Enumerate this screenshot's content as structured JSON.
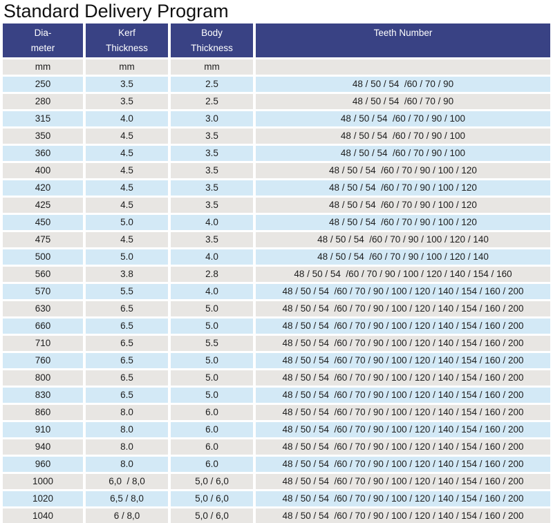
{
  "title": "Standard Delivery Program",
  "colors": {
    "header_bg": "#394284",
    "header_text": "#FFFFFF",
    "row_blue": "#D3E9F6",
    "row_gray": "#E8E6E3",
    "text": "#1C1C1C",
    "title_text": "#111111",
    "separator": "#FFFFFF"
  },
  "table": {
    "columns": [
      {
        "key": "diameter",
        "line1": "Dia-",
        "line2": "meter"
      },
      {
        "key": "kerf",
        "line1": "Kerf",
        "line2": "Thickness"
      },
      {
        "key": "body",
        "line1": "Body",
        "line2": "Thickness"
      },
      {
        "key": "teeth",
        "line1": "Teeth Number",
        "line2": ""
      }
    ],
    "units_row": [
      "mm",
      "mm",
      "mm",
      ""
    ],
    "rows": [
      [
        "250",
        "3.5",
        "2.5",
        "48 / 50 / 54  /60 / 70 / 90"
      ],
      [
        "280",
        "3.5",
        "2.5",
        "48 / 50 / 54  /60 / 70 / 90"
      ],
      [
        "315",
        "4.0",
        "3.0",
        "48 / 50 / 54  /60 / 70 / 90 / 100"
      ],
      [
        "350",
        "4.5",
        "3.5",
        "48 / 50 / 54  /60 / 70 / 90 / 100"
      ],
      [
        "360",
        "4.5",
        "3.5",
        "48 / 50 / 54  /60 / 70 / 90 / 100"
      ],
      [
        "400",
        "4.5",
        "3.5",
        "48 / 50 / 54  /60 / 70 / 90 / 100 / 120"
      ],
      [
        "420",
        "4.5",
        "3.5",
        "48 / 50 / 54  /60 / 70 / 90 / 100 / 120"
      ],
      [
        "425",
        "4.5",
        "3.5",
        "48 / 50 / 54  /60 / 70 / 90 / 100 / 120"
      ],
      [
        "450",
        "5.0",
        "4.0",
        "48 / 50 / 54  /60 / 70 / 90 / 100 / 120"
      ],
      [
        "475",
        "4.5",
        "3.5",
        "48 / 50 / 54  /60 / 70 / 90 / 100 / 120 / 140"
      ],
      [
        "500",
        "5.0",
        "4.0",
        "48 / 50 / 54  /60 / 70 / 90 / 100 / 120 / 140"
      ],
      [
        "560",
        "3.8",
        "2.8",
        "48 / 50 / 54  /60 / 70 / 90 / 100 / 120 / 140 / 154 / 160"
      ],
      [
        "570",
        "5.5",
        "4.0",
        "48 / 50 / 54  /60 / 70 / 90 / 100 / 120 / 140 / 154 / 160 / 200"
      ],
      [
        "630",
        "6.5",
        "5.0",
        "48 / 50 / 54  /60 / 70 / 90 / 100 / 120 / 140 / 154 / 160 / 200"
      ],
      [
        "660",
        "6.5",
        "5.0",
        "48 / 50 / 54  /60 / 70 / 90 / 100 / 120 / 140 / 154 / 160 / 200"
      ],
      [
        "710",
        "6.5",
        "5.5",
        "48 / 50 / 54  /60 / 70 / 90 / 100 / 120 / 140 / 154 / 160 / 200"
      ],
      [
        "760",
        "6.5",
        "5.0",
        "48 / 50 / 54  /60 / 70 / 90 / 100 / 120 / 140 / 154 / 160 / 200"
      ],
      [
        "800",
        "6.5",
        "5.0",
        "48 / 50 / 54  /60 / 70 / 90 / 100 / 120 / 140 / 154 / 160 / 200"
      ],
      [
        "830",
        "6.5",
        "5.0",
        "48 / 50 / 54  /60 / 70 / 90 / 100 / 120 / 140 / 154 / 160 / 200"
      ],
      [
        "860",
        "8.0",
        "6.0",
        "48 / 50 / 54  /60 / 70 / 90 / 100 / 120 / 140 / 154 / 160 / 200"
      ],
      [
        "910",
        "8.0",
        "6.0",
        "48 / 50 / 54  /60 / 70 / 90 / 100 / 120 / 140 / 154 / 160 / 200"
      ],
      [
        "940",
        "8.0",
        "6.0",
        "48 / 50 / 54  /60 / 70 / 90 / 100 / 120 / 140 / 154 / 160 / 200"
      ],
      [
        "960",
        "8.0",
        "6.0",
        "48 / 50 / 54  /60 / 70 / 90 / 100 / 120 / 140 / 154 / 160 / 200"
      ],
      [
        "1000",
        "6,0  / 8,0",
        "5,0 / 6,0",
        "48 / 50 / 54  /60 / 70 / 90 / 100 / 120 / 140 / 154 / 160 / 200"
      ],
      [
        "1020",
        "6,5 / 8,0",
        "5,0 / 6,0",
        "48 / 50 / 54  /60 / 70 / 90 / 100 / 120 / 140 / 154 / 160 / 200"
      ],
      [
        "1040",
        "6 / 8,0",
        "5,0 / 6,0",
        "48 / 50 / 54  /60 / 70 / 90 / 100 / 120 / 140 / 154 / 160 / 200"
      ]
    ]
  }
}
